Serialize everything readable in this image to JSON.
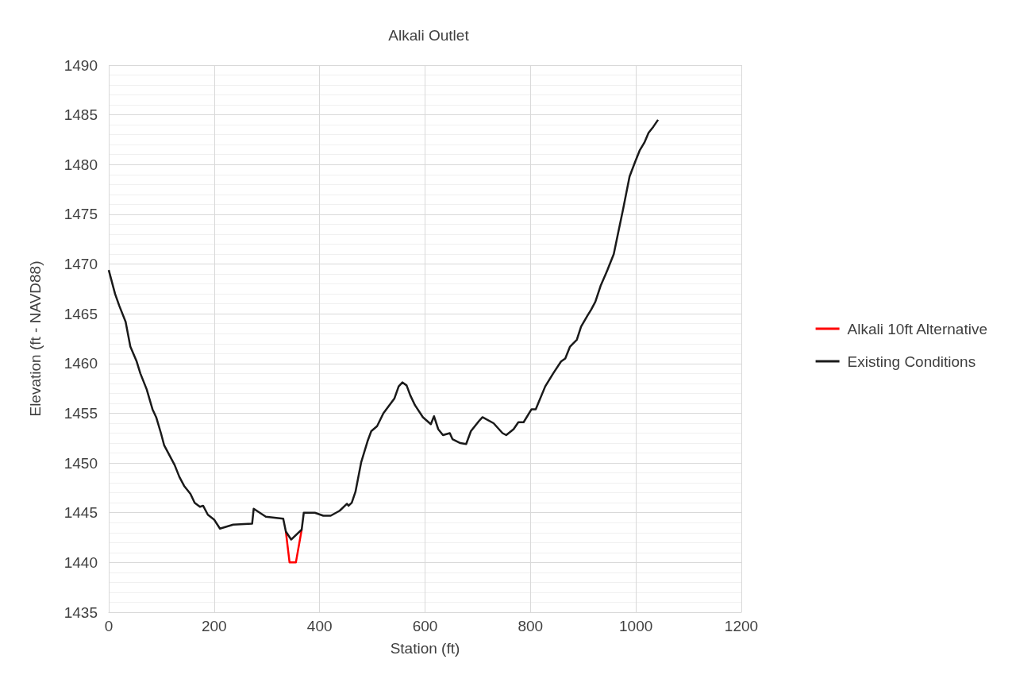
{
  "chart_data": {
    "type": "line",
    "title": "Alkali Outlet",
    "xlabel": "Station (ft)",
    "ylabel": "Elevation (ft - NAVD88)",
    "xlim": [
      0,
      1200
    ],
    "xticks": [
      0,
      200,
      400,
      600,
      800,
      1000,
      1200
    ],
    "ylim": [
      1435,
      1490
    ],
    "yticks": [
      1435,
      1440,
      1445,
      1450,
      1455,
      1460,
      1465,
      1470,
      1475,
      1480,
      1485,
      1490
    ],
    "grid": true,
    "legend": "right",
    "marker": "none",
    "line_style": "solid",
    "series": [
      {
        "name": "Alkali 10ft Alternative",
        "color": "#ff0000",
        "x": [
          336,
          343,
          355,
          366
        ],
        "values": [
          1443.1,
          1440.0,
          1440.0,
          1443.3
        ]
      },
      {
        "name": "Existing Conditions",
        "color": "#1a1a1a",
        "x": [
          0,
          12,
          20,
          32,
          41,
          53,
          60,
          72,
          83,
          90,
          99,
          105,
          113,
          125,
          134,
          143,
          155,
          163,
          173,
          179,
          188,
          200,
          211,
          236,
          272,
          275,
          298,
          331,
          336,
          346,
          366,
          370,
          391,
          407,
          421,
          438,
          452,
          455,
          461,
          468,
          479,
          491,
          498,
          509,
          521,
          535,
          542,
          550,
          557,
          565,
          572,
          581,
          596,
          611,
          617,
          625,
          634,
          647,
          652,
          667,
          678,
          687,
          702,
          709,
          730,
          747,
          754,
          768,
          777,
          787,
          802,
          810,
          828,
          843,
          858,
          866,
          875,
          888,
          896,
          908,
          915,
          923,
          933,
          946,
          958,
          965,
          976,
          988,
          998,
          1007,
          1016,
          1024,
          1033,
          1042
        ],
        "values": [
          1469.4,
          1467.0,
          1465.8,
          1464.2,
          1461.7,
          1460.2,
          1459.0,
          1457.4,
          1455.4,
          1454.6,
          1453.0,
          1451.8,
          1451.0,
          1449.8,
          1448.6,
          1447.7,
          1446.9,
          1446.0,
          1445.6,
          1445.7,
          1444.8,
          1444.3,
          1443.4,
          1443.8,
          1443.9,
          1445.4,
          1444.6,
          1444.4,
          1443.1,
          1442.3,
          1443.3,
          1445.0,
          1445.0,
          1444.7,
          1444.7,
          1445.2,
          1445.9,
          1445.7,
          1446.0,
          1447.1,
          1450.1,
          1452.2,
          1453.2,
          1453.7,
          1455.0,
          1456.0,
          1456.5,
          1457.7,
          1458.1,
          1457.8,
          1456.8,
          1455.8,
          1454.6,
          1453.9,
          1454.7,
          1453.4,
          1452.8,
          1453.0,
          1452.4,
          1452.0,
          1451.9,
          1453.2,
          1454.2,
          1454.6,
          1454.0,
          1453.0,
          1452.8,
          1453.4,
          1454.1,
          1454.1,
          1455.4,
          1455.4,
          1457.7,
          1459.0,
          1460.2,
          1460.5,
          1461.7,
          1462.4,
          1463.7,
          1464.8,
          1465.4,
          1466.2,
          1467.8,
          1469.4,
          1471.0,
          1472.8,
          1475.6,
          1478.8,
          1480.2,
          1481.4,
          1482.2,
          1483.2,
          1483.8,
          1484.5
        ]
      }
    ]
  }
}
